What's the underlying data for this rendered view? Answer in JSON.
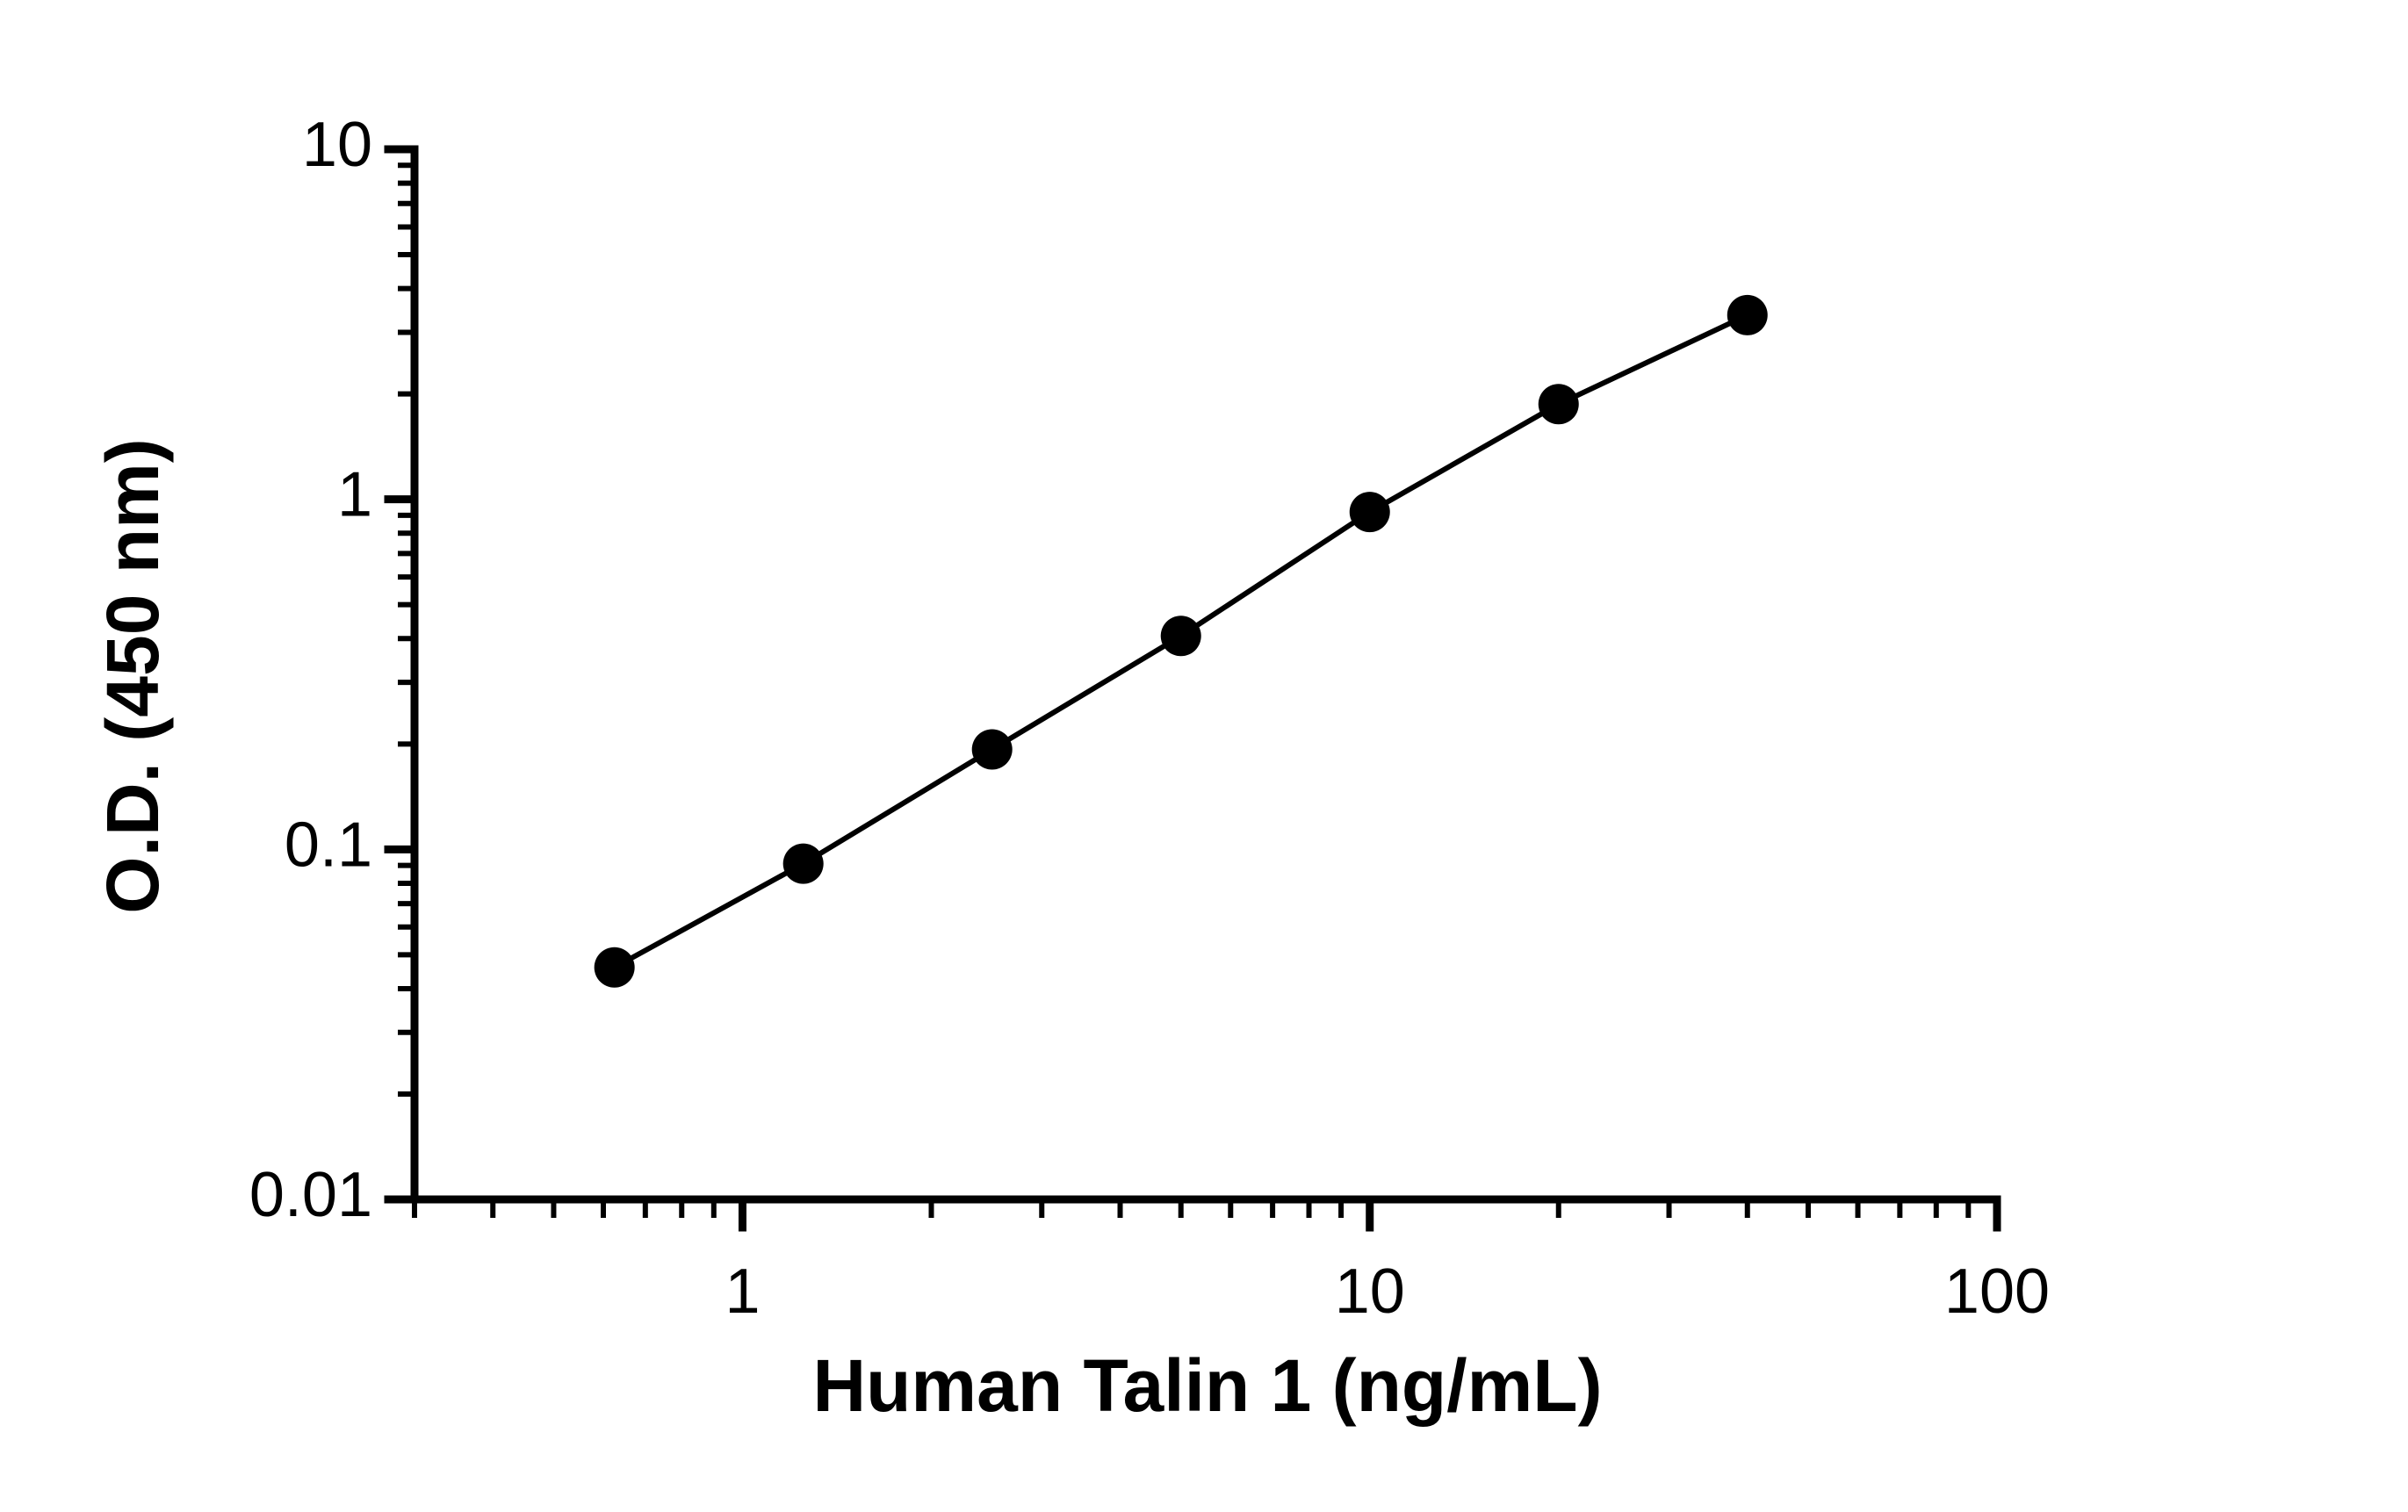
{
  "chart_data": {
    "type": "line",
    "x_label": "Human Talin 1 (ng/mL)",
    "y_label": "O.D. (450 nm)",
    "x": [
      0.625,
      1.25,
      2.5,
      5,
      10,
      20,
      40
    ],
    "series": [
      {
        "color": "#000000",
        "values": [
          0.046,
          0.091,
          0.193,
          0.407,
          0.92,
          1.87,
          3.36
        ]
      }
    ],
    "xscale": "log",
    "yscale": "log",
    "xlim": [
      0.3,
      100
    ],
    "ylim": [
      0.01,
      10
    ],
    "xticks": [
      1,
      10,
      100
    ],
    "yticks": [
      0.01,
      0.1,
      1,
      10
    ],
    "markers": true
  }
}
